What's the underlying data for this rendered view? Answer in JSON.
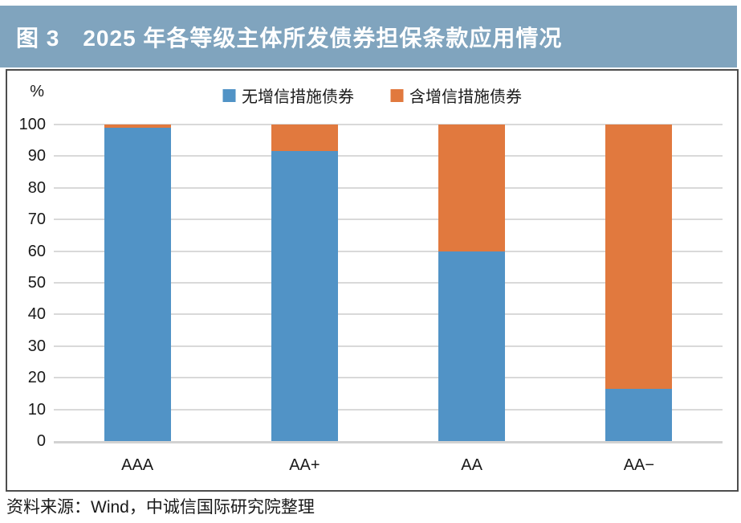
{
  "header": {
    "title": "图 3　2025 年各等级主体所发债券担保条款应用情况",
    "background_color": "#80a4be",
    "text_color": "#ffffff"
  },
  "chart_data": {
    "type": "bar",
    "stacked": true,
    "orientation": "vertical",
    "unit_label": "%",
    "categories": [
      "AAA",
      "AA+",
      "AA",
      "AA−"
    ],
    "series": [
      {
        "name": "无增信措施债券",
        "color": "#5193c6",
        "values": [
          99,
          91.5,
          60,
          16.5
        ]
      },
      {
        "name": "含增信措施债券",
        "color": "#e1793e",
        "values": [
          1,
          8.5,
          40,
          83.5
        ]
      }
    ],
    "ylim": [
      0,
      100
    ],
    "yticks": [
      0,
      10,
      20,
      30,
      40,
      50,
      60,
      70,
      80,
      90,
      100
    ],
    "grid": true,
    "gridline_color": "#d9d9d9",
    "legend_position": "top"
  },
  "footer": {
    "source": "资料来源：Wind，中诚信国际研究院整理"
  }
}
